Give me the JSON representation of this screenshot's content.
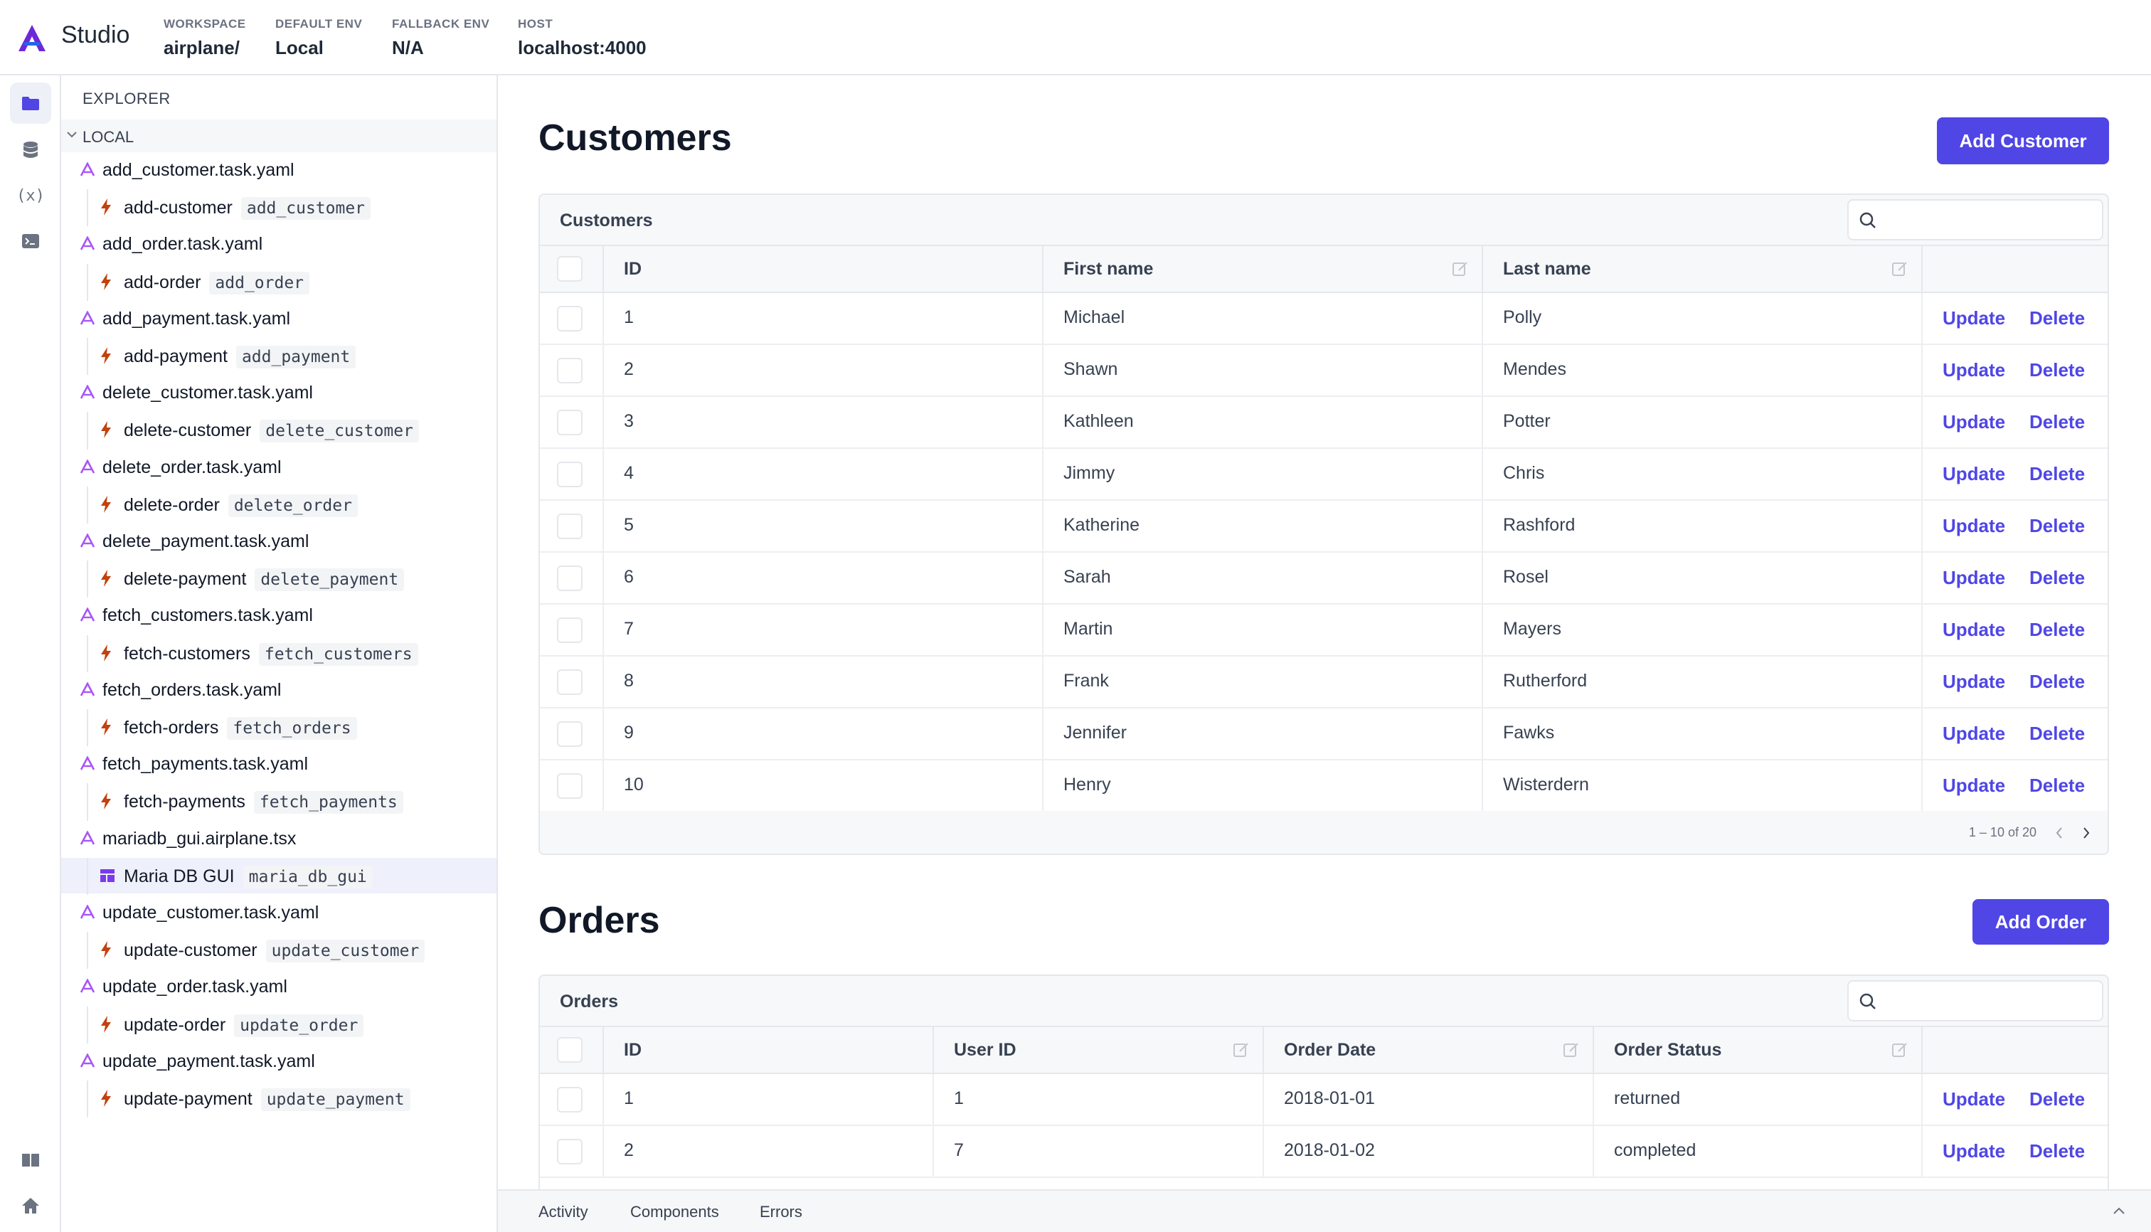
{
  "header": {
    "app_name": "Studio",
    "workspace_label": "WORKSPACE",
    "workspace_value": "airplane/",
    "default_env_label": "DEFAULT ENV",
    "default_env_value": "Local",
    "fallback_env_label": "FALLBACK ENV",
    "fallback_env_value": "N/A",
    "host_label": "HOST",
    "host_value": "localhost:4000"
  },
  "rail": {
    "icons": [
      "folder-icon",
      "database-icon",
      "variables-icon",
      "terminal-icon",
      "book-icon",
      "home-icon"
    ],
    "variables_glyph": "(x)"
  },
  "explorer": {
    "title": "EXPLORER",
    "group": "LOCAL",
    "files": [
      {
        "file": "add_customer.task.yaml",
        "child": "add-customer",
        "slug": "add_customer",
        "kind": "task"
      },
      {
        "file": "add_order.task.yaml",
        "child": "add-order",
        "slug": "add_order",
        "kind": "task"
      },
      {
        "file": "add_payment.task.yaml",
        "child": "add-payment",
        "slug": "add_payment",
        "kind": "task"
      },
      {
        "file": "delete_customer.task.yaml",
        "child": "delete-customer",
        "slug": "delete_customer",
        "kind": "task"
      },
      {
        "file": "delete_order.task.yaml",
        "child": "delete-order",
        "slug": "delete_order",
        "kind": "task"
      },
      {
        "file": "delete_payment.task.yaml",
        "child": "delete-payment",
        "slug": "delete_payment",
        "kind": "task"
      },
      {
        "file": "fetch_customers.task.yaml",
        "child": "fetch-customers",
        "slug": "fetch_customers",
        "kind": "task"
      },
      {
        "file": "fetch_orders.task.yaml",
        "child": "fetch-orders",
        "slug": "fetch_orders",
        "kind": "task"
      },
      {
        "file": "fetch_payments.task.yaml",
        "child": "fetch-payments",
        "slug": "fetch_payments",
        "kind": "task"
      },
      {
        "file": "mariadb_gui.airplane.tsx",
        "child": "Maria DB GUI",
        "slug": "maria_db_gui",
        "kind": "view"
      },
      {
        "file": "update_customer.task.yaml",
        "child": "update-customer",
        "slug": "update_customer",
        "kind": "task"
      },
      {
        "file": "update_order.task.yaml",
        "child": "update-order",
        "slug": "update_order",
        "kind": "task"
      },
      {
        "file": "update_payment.task.yaml",
        "child": "update-payment",
        "slug": "update_payment",
        "kind": "task"
      }
    ],
    "selected_index": 9
  },
  "customers": {
    "title": "Customers",
    "add_button": "Add Customer",
    "table_title": "Customers",
    "search_placeholder": "",
    "columns": [
      "ID",
      "First name",
      "Last name"
    ],
    "rows": [
      [
        "1",
        "Michael",
        "Polly"
      ],
      [
        "2",
        "Shawn",
        "Mendes"
      ],
      [
        "3",
        "Kathleen",
        "Potter"
      ],
      [
        "4",
        "Jimmy",
        "Chris"
      ],
      [
        "5",
        "Katherine",
        "Rashford"
      ],
      [
        "6",
        "Sarah",
        "Rosel"
      ],
      [
        "7",
        "Martin",
        "Mayers"
      ],
      [
        "8",
        "Frank",
        "Rutherford"
      ],
      [
        "9",
        "Jennifer",
        "Fawks"
      ],
      [
        "10",
        "Henry",
        "Wisterdern"
      ]
    ],
    "update_label": "Update",
    "delete_label": "Delete",
    "pagination": "1 – 10 of 20"
  },
  "orders": {
    "title": "Orders",
    "add_button": "Add Order",
    "table_title": "Orders",
    "search_placeholder": "",
    "columns": [
      "ID",
      "User ID",
      "Order Date",
      "Order Status"
    ],
    "rows": [
      [
        "1",
        "1",
        "2018-01-01",
        "returned"
      ],
      [
        "2",
        "7",
        "2018-01-02",
        "completed"
      ]
    ],
    "update_label": "Update",
    "delete_label": "Delete"
  },
  "bottom_panel": {
    "tabs": [
      "Activity",
      "Components",
      "Errors"
    ]
  },
  "colors": {
    "accent": "#4f46e5",
    "task_bolt": "#c2410c",
    "brand_logo": "#6d28d9"
  }
}
